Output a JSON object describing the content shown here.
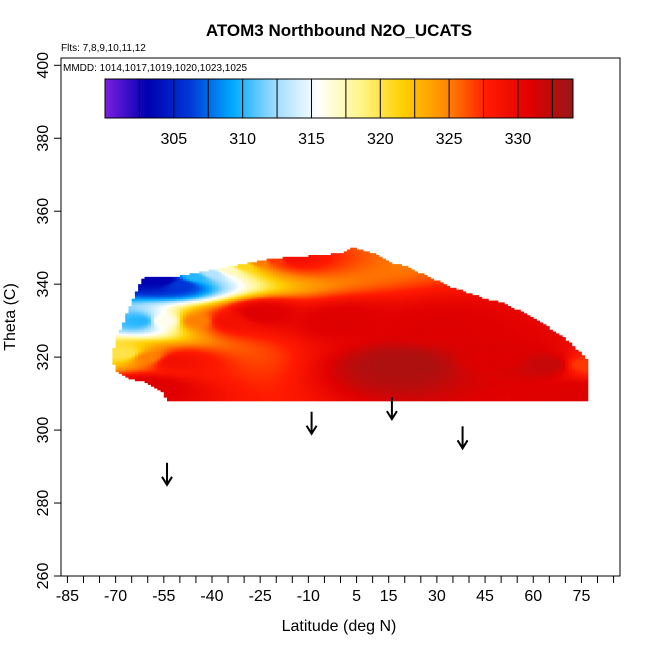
{
  "chart_data": {
    "type": "heatmap",
    "title": "ATOM3 Northbound N2O_UCATS",
    "flights_note": "Flts: 7,8,9,10,11,12",
    "dates_note": "MMDD: 1014,1017,1019,1020,1023,1025",
    "xlabel": "Latitude (deg N)",
    "ylabel": "Theta (C)",
    "xlim": [
      -87,
      87
    ],
    "ylim": [
      260,
      402
    ],
    "x_ticks": [
      -85,
      -70,
      -55,
      -40,
      -25,
      -10,
      5,
      15,
      30,
      45,
      60,
      75
    ],
    "x_minor_step": 5,
    "y_ticks": [
      260,
      280,
      300,
      320,
      340,
      360,
      380,
      400
    ],
    "colorbar": {
      "range": [
        300,
        334
      ],
      "ticks": [
        305,
        310,
        315,
        320,
        325,
        330
      ],
      "colors": [
        "#7a1fe0",
        "#0000b0",
        "#0038d8",
        "#00aaff",
        "#9fdcff",
        "#ffffff",
        "#fff58a",
        "#ffd000",
        "#ff8a00",
        "#ff1a00",
        "#e00000",
        "#961818"
      ]
    },
    "field_description": "Curtain of N2O mixing ratio vs latitude and potential temperature; about 330-333 in the lower and central region, decreasing toward 305-320 in the upper south region",
    "field_nodes": [
      {
        "lat": -60,
        "theta": 342,
        "value": 303
      },
      {
        "lat": -55,
        "theta": 341,
        "value": 303
      },
      {
        "lat": -50,
        "theta": 340,
        "value": 306
      },
      {
        "lat": -45,
        "theta": 342,
        "value": 310
      },
      {
        "lat": -40,
        "theta": 343,
        "value": 313
      },
      {
        "lat": -35,
        "theta": 344,
        "value": 317
      },
      {
        "lat": -30,
        "theta": 345,
        "value": 321
      },
      {
        "lat": -25,
        "theta": 346,
        "value": 325
      },
      {
        "lat": -20,
        "theta": 346.5,
        "value": 327
      },
      {
        "lat": -15,
        "theta": 347,
        "value": 329
      },
      {
        "lat": -62,
        "theta": 330,
        "value": 310
      },
      {
        "lat": -55,
        "theta": 330,
        "value": 316
      },
      {
        "lat": -45,
        "theta": 330,
        "value": 325
      },
      {
        "lat": -35,
        "theta": 330,
        "value": 329
      },
      {
        "lat": -25,
        "theta": 332,
        "value": 331
      },
      {
        "lat": -67,
        "theta": 321,
        "value": 320
      },
      {
        "lat": -60,
        "theta": 320,
        "value": 325
      },
      {
        "lat": -52,
        "theta": 319,
        "value": 329
      },
      {
        "lat": -60,
        "theta": 312,
        "value": 331
      },
      {
        "lat": 0,
        "theta": 330,
        "value": 331
      },
      {
        "lat": 30,
        "theta": 328,
        "value": 331
      },
      {
        "lat": 20,
        "theta": 318,
        "value": 333
      },
      {
        "lat": 50,
        "theta": 320,
        "value": 331
      },
      {
        "lat": 65,
        "theta": 318,
        "value": 332
      },
      {
        "lat": 76,
        "theta": 318,
        "value": 327
      },
      {
        "lat": 74,
        "theta": 310,
        "value": 331
      }
    ],
    "arrows": [
      {
        "lat": -54,
        "theta": 285
      },
      {
        "lat": -9,
        "theta": 299
      },
      {
        "lat": 16,
        "theta": 303
      },
      {
        "lat": 38,
        "theta": 295
      }
    ]
  }
}
